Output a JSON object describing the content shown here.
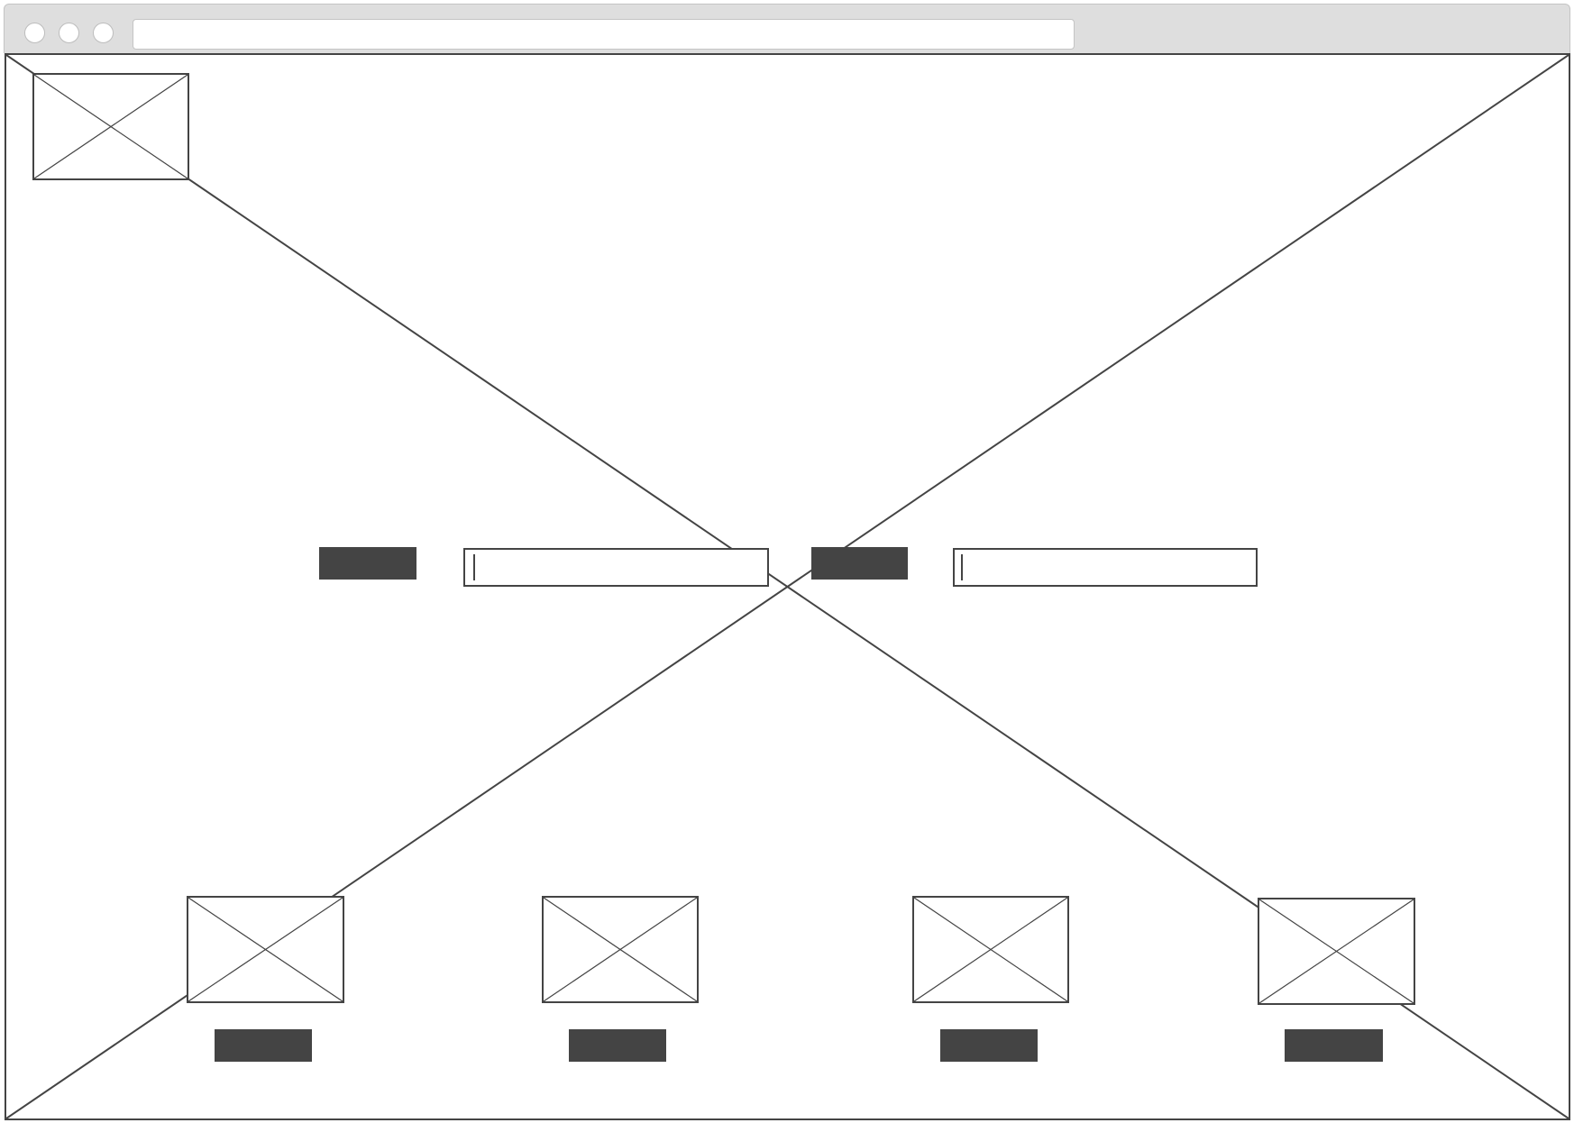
{
  "window": {
    "address_bar_text": "",
    "controls": [
      "close",
      "minimize",
      "maximize"
    ]
  },
  "colors": {
    "chrome_bg": "#dedede",
    "stroke": "#444444",
    "button_fill": "#444444",
    "page_bg": "#ffffff"
  },
  "icons": {
    "placeholder": "image-placeholder-icon"
  },
  "header": {
    "logo_label": ""
  },
  "form": {
    "button_1_label": "",
    "input_1_value": "",
    "input_1_placeholder": "",
    "button_2_label": "",
    "input_2_value": "",
    "input_2_placeholder": ""
  },
  "gallery": {
    "items": [
      {
        "button_label": ""
      },
      {
        "button_label": ""
      },
      {
        "button_label": ""
      },
      {
        "button_label": ""
      }
    ]
  }
}
